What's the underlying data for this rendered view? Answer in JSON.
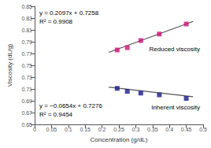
{
  "chart_data": {
    "type": "scatter",
    "xlabel": "Concentration (g/dL)",
    "ylabel": "Viscosity (dL/g)",
    "xlim": [
      0,
      0.5
    ],
    "ylim": [
      0.65,
      0.85
    ],
    "xticks": [
      0,
      0.05,
      0.1,
      0.15,
      0.2,
      0.25,
      0.3,
      0.35,
      0.4,
      0.45,
      0.5
    ],
    "yticks": [
      0.65,
      0.67,
      0.69,
      0.71,
      0.73,
      0.75,
      0.77,
      0.79,
      0.81,
      0.83,
      0.85
    ],
    "grid": false,
    "series": [
      {
        "name": "Reduced viscosity",
        "type": "scatter",
        "marker": "square",
        "color": "#cc1177",
        "x": [
          0.245,
          0.275,
          0.315,
          0.37,
          0.45
        ],
        "values": [
          0.776,
          0.78,
          0.792,
          0.803,
          0.82
        ]
      },
      {
        "name": "Inherent viscosity",
        "type": "scatter",
        "marker": "square",
        "color": "#1a1a88",
        "x": [
          0.245,
          0.275,
          0.315,
          0.37,
          0.45
        ],
        "values": [
          0.711,
          0.706,
          0.703,
          0.7,
          0.694
        ]
      },
      {
        "type": "line",
        "color": "#555555",
        "x": [
          0.22,
          0.47
        ],
        "values": [
          0.771934,
          0.824359
        ]
      },
      {
        "type": "line",
        "color": "#555555",
        "x": [
          0.22,
          0.47
        ],
        "values": [
          0.713212,
          0.696862
        ]
      }
    ],
    "annotations": [
      "y = 0.2097x + 0.7258",
      "R² = 0.9908",
      "y = −0.0654x + 0.7276",
      "R² = 0.9454"
    ]
  }
}
